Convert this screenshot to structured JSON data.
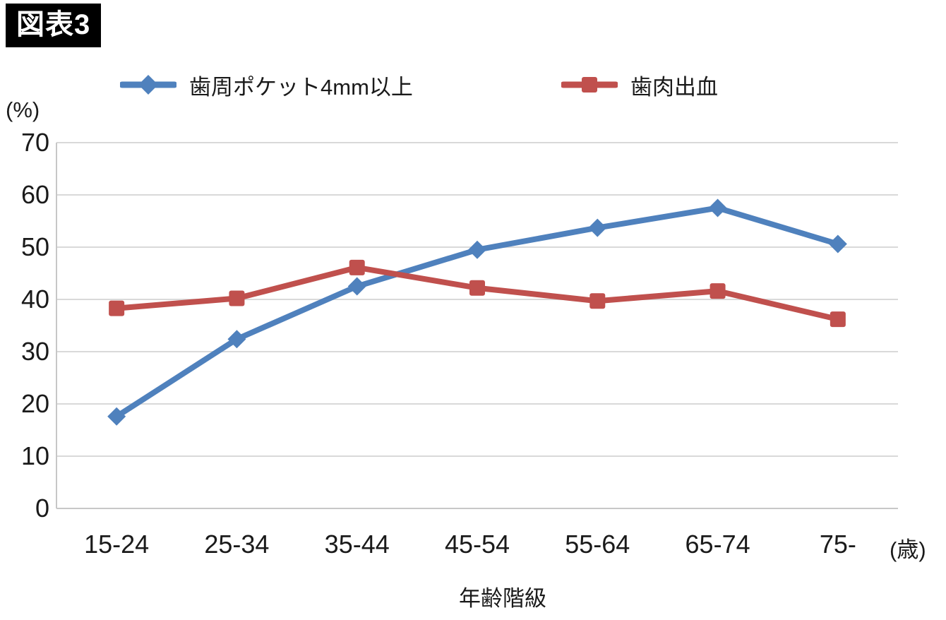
{
  "figure_label": "図表3",
  "chart_data": {
    "type": "line",
    "title": "",
    "categories": [
      "15-24",
      "25-34",
      "35-44",
      "45-54",
      "55-64",
      "65-74",
      "75-"
    ],
    "series": [
      {
        "name": "歯周ポケット4mm以上",
        "marker": "diamond",
        "color": "#4F81BD",
        "values": [
          17.6,
          32.4,
          42.5,
          49.5,
          53.7,
          57.5,
          50.6
        ]
      },
      {
        "name": "歯肉出血",
        "marker": "square",
        "color": "#C0504D",
        "values": [
          38.3,
          40.2,
          46.1,
          42.2,
          39.7,
          41.6,
          36.2
        ]
      }
    ],
    "ylabel": "(%)",
    "xlabel": "年齢階級",
    "x_unit_label": "(歳)",
    "ylim": [
      0,
      70
    ],
    "ytick_step": 10,
    "grid": true,
    "legend_position": "top"
  },
  "colors": {
    "badge_bg": "#000000",
    "badge_text": "#ffffff",
    "gridline": "#d9d9d9",
    "axis_line": "#c7c7c7",
    "tick_text": "#1a1a1a",
    "background": "#ffffff"
  }
}
